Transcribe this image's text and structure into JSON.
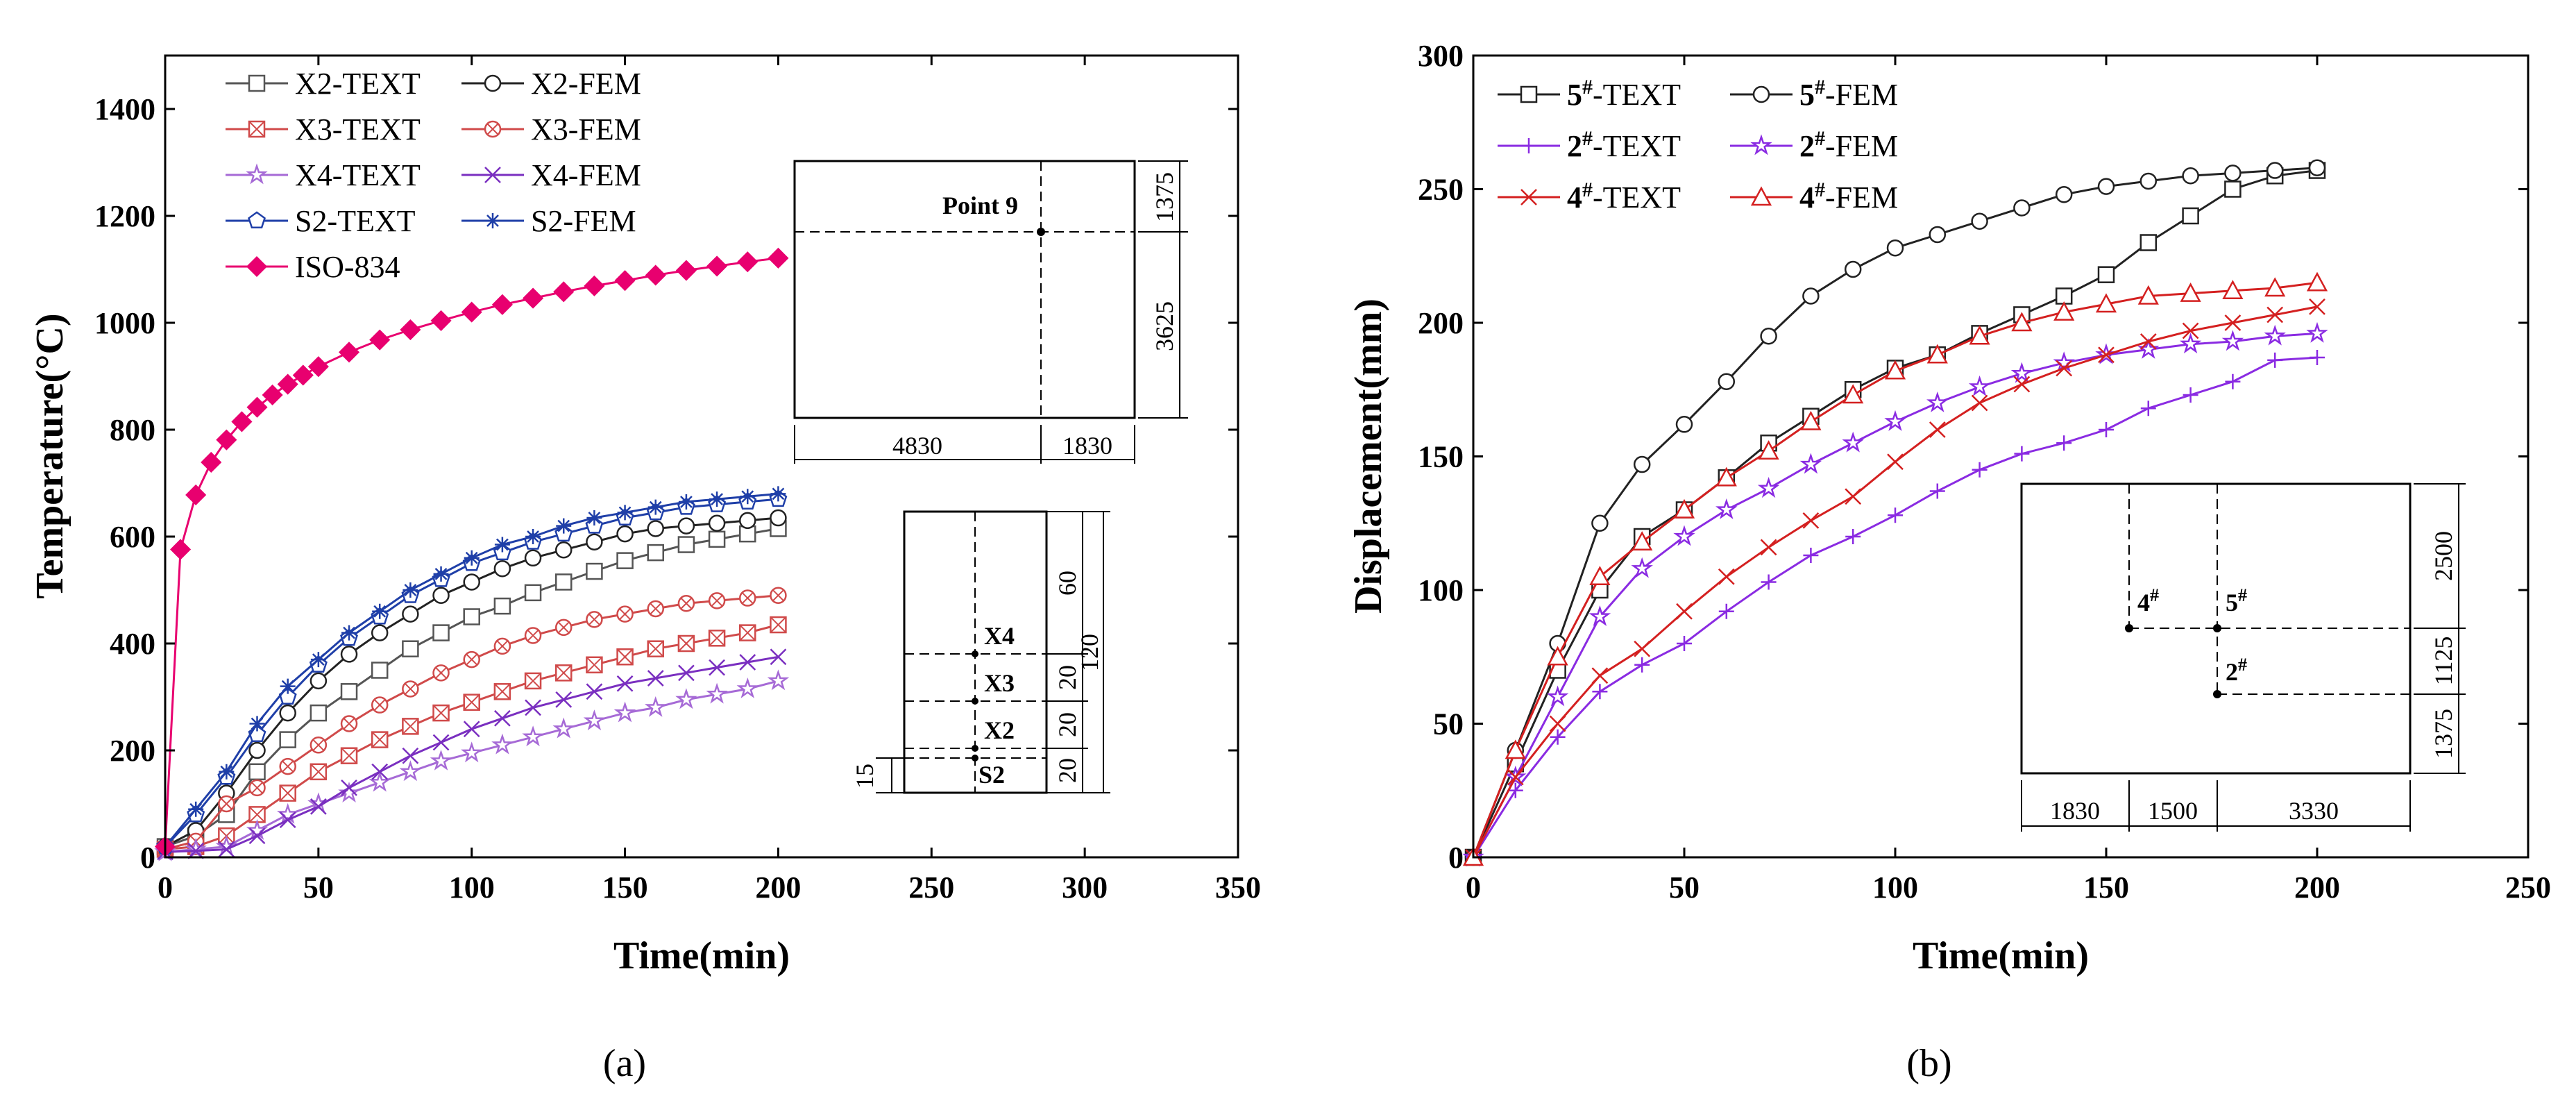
{
  "chart_data": [
    {
      "type": "line",
      "panel_label": "(a)",
      "title": "",
      "xlabel": "Time(min)",
      "ylabel": "Temperature(°C)",
      "xlim": [
        0,
        350
      ],
      "ylim": [
        0,
        1500
      ],
      "xticks": [
        0,
        50,
        100,
        150,
        200,
        250,
        300,
        350
      ],
      "yticks": [
        0,
        200,
        400,
        600,
        800,
        1000,
        1200,
        1400
      ],
      "legend_position": "top-left",
      "series": [
        {
          "name": "X2-TEXT",
          "color": "#555555",
          "marker": "square",
          "x": [
            0,
            10,
            20,
            30,
            40,
            50,
            60,
            70,
            80,
            90,
            100,
            110,
            120,
            130,
            140,
            150,
            160,
            170,
            180,
            190,
            200
          ],
          "y": [
            20,
            40,
            80,
            160,
            220,
            270,
            310,
            350,
            390,
            420,
            450,
            470,
            495,
            515,
            535,
            555,
            570,
            585,
            595,
            605,
            615
          ]
        },
        {
          "name": "X2-FEM",
          "color": "#222222",
          "marker": "circle",
          "x": [
            0,
            10,
            20,
            30,
            40,
            50,
            60,
            70,
            80,
            90,
            100,
            110,
            120,
            130,
            140,
            150,
            160,
            170,
            180,
            190,
            200
          ],
          "y": [
            20,
            50,
            120,
            200,
            270,
            330,
            380,
            420,
            455,
            490,
            515,
            540,
            560,
            575,
            590,
            605,
            615,
            620,
            625,
            630,
            635
          ]
        },
        {
          "name": "X3-TEXT",
          "color": "#d04a4a",
          "marker": "square-x",
          "x": [
            0,
            10,
            20,
            30,
            40,
            50,
            60,
            70,
            80,
            90,
            100,
            110,
            120,
            130,
            140,
            150,
            160,
            170,
            180,
            190,
            200
          ],
          "y": [
            15,
            20,
            40,
            80,
            120,
            160,
            190,
            220,
            245,
            270,
            290,
            310,
            330,
            345,
            360,
            375,
            390,
            400,
            410,
            420,
            435
          ]
        },
        {
          "name": "X3-FEM",
          "color": "#d04a4a",
          "marker": "circle-x",
          "x": [
            0,
            10,
            20,
            30,
            40,
            50,
            60,
            70,
            80,
            90,
            100,
            110,
            120,
            130,
            140,
            150,
            160,
            170,
            180,
            190,
            200
          ],
          "y": [
            15,
            30,
            100,
            130,
            170,
            210,
            250,
            285,
            315,
            345,
            370,
            395,
            415,
            430,
            445,
            455,
            465,
            475,
            480,
            485,
            490
          ]
        },
        {
          "name": "X4-TEXT",
          "color": "#a66ad6",
          "marker": "star",
          "x": [
            0,
            10,
            20,
            30,
            40,
            50,
            60,
            70,
            80,
            90,
            100,
            110,
            120,
            130,
            140,
            150,
            160,
            170,
            180,
            190,
            200
          ],
          "y": [
            10,
            15,
            20,
            50,
            80,
            100,
            120,
            140,
            160,
            180,
            195,
            210,
            225,
            240,
            255,
            270,
            280,
            295,
            305,
            315,
            330
          ]
        },
        {
          "name": "X4-FEM",
          "color": "#7a2fc0",
          "marker": "x",
          "x": [
            0,
            10,
            20,
            30,
            40,
            50,
            60,
            70,
            80,
            90,
            100,
            110,
            120,
            130,
            140,
            150,
            160,
            170,
            180,
            190,
            200
          ],
          "y": [
            10,
            12,
            15,
            40,
            70,
            95,
            130,
            160,
            190,
            215,
            240,
            260,
            280,
            295,
            310,
            325,
            335,
            345,
            355,
            365,
            375
          ]
        },
        {
          "name": "S2-TEXT",
          "color": "#1f3fa8",
          "marker": "pentagon",
          "x": [
            0,
            10,
            20,
            30,
            40,
            50,
            60,
            70,
            80,
            90,
            100,
            110,
            120,
            130,
            140,
            150,
            160,
            170,
            180,
            190,
            200
          ],
          "y": [
            20,
            80,
            150,
            230,
            300,
            360,
            410,
            450,
            490,
            520,
            550,
            570,
            590,
            605,
            620,
            635,
            645,
            655,
            660,
            665,
            670
          ]
        },
        {
          "name": "S2-FEM",
          "color": "#1f3fa8",
          "marker": "asterisk",
          "x": [
            0,
            10,
            20,
            30,
            40,
            50,
            60,
            70,
            80,
            90,
            100,
            110,
            120,
            130,
            140,
            150,
            160,
            170,
            180,
            190,
            200
          ],
          "y": [
            20,
            90,
            160,
            250,
            320,
            370,
            420,
            460,
            500,
            530,
            560,
            585,
            600,
            620,
            635,
            645,
            655,
            665,
            670,
            675,
            680
          ]
        },
        {
          "name": "ISO-834",
          "color": "#e8006f",
          "marker": "diamond-filled",
          "x": [
            0,
            5,
            10,
            15,
            20,
            25,
            30,
            35,
            40,
            45,
            50,
            60,
            70,
            80,
            90,
            100,
            110,
            120,
            130,
            140,
            150,
            160,
            170,
            180,
            190,
            200
          ],
          "y": [
            20,
            576,
            678,
            739,
            781,
            815,
            842,
            865,
            885,
            902,
            918,
            945,
            968,
            987,
            1004,
            1020,
            1034,
            1046,
            1058,
            1069,
            1079,
            1089,
            1098,
            1106,
            1114,
            1121
          ]
        }
      ],
      "inset_top": {
        "point_label": "Point 9",
        "dims_horizontal": [
          "4830",
          "1830"
        ],
        "dims_vertical": [
          "1375",
          "3625"
        ]
      },
      "inset_bottom": {
        "section_labels": [
          "X4",
          "X3",
          "X2",
          "S2"
        ],
        "dims_spacing": [
          "60",
          "20",
          "20",
          "20"
        ],
        "dim_total": "120",
        "dim_side": "15"
      }
    },
    {
      "type": "line",
      "panel_label": "(b)",
      "title": "",
      "xlabel": "Time(min)",
      "ylabel": "Displacement(mm)",
      "xlim": [
        0,
        250
      ],
      "ylim": [
        0,
        300
      ],
      "xticks": [
        0,
        50,
        100,
        150,
        200,
        250
      ],
      "yticks": [
        0,
        50,
        100,
        150,
        200,
        250,
        300
      ],
      "legend_position": "top-left",
      "series": [
        {
          "name": "5#-TEXT",
          "label_num": "5",
          "label_sup": "#",
          "label_suffix": "-TEXT",
          "color": "#222222",
          "marker": "square",
          "x": [
            0,
            10,
            20,
            30,
            40,
            50,
            60,
            70,
            80,
            90,
            100,
            110,
            120,
            130,
            140,
            150,
            160,
            170,
            180,
            190,
            200
          ],
          "y": [
            0,
            35,
            70,
            100,
            120,
            130,
            142,
            155,
            165,
            175,
            183,
            188,
            196,
            203,
            210,
            218,
            230,
            240,
            250,
            255,
            257
          ]
        },
        {
          "name": "5#-FEM",
          "label_num": "5",
          "label_sup": "#",
          "label_suffix": "-FEM",
          "color": "#222222",
          "marker": "circle",
          "x": [
            0,
            10,
            20,
            30,
            40,
            50,
            60,
            70,
            80,
            90,
            100,
            110,
            120,
            130,
            140,
            150,
            160,
            170,
            180,
            190,
            200
          ],
          "y": [
            0,
            40,
            80,
            125,
            147,
            162,
            178,
            195,
            210,
            220,
            228,
            233,
            238,
            243,
            248,
            251,
            253,
            255,
            256,
            257,
            258
          ]
        },
        {
          "name": "2#-TEXT",
          "label_num": "2",
          "label_sup": "#",
          "label_suffix": "-TEXT",
          "color": "#8a2be2",
          "marker": "plus",
          "x": [
            0,
            10,
            20,
            30,
            40,
            50,
            60,
            70,
            80,
            90,
            100,
            110,
            120,
            130,
            140,
            150,
            160,
            170,
            180,
            190,
            200
          ],
          "y": [
            0,
            25,
            45,
            62,
            72,
            80,
            92,
            103,
            113,
            120,
            128,
            137,
            145,
            151,
            155,
            160,
            168,
            173,
            178,
            186,
            187
          ]
        },
        {
          "name": "2#-FEM",
          "label_num": "2",
          "label_sup": "#",
          "label_suffix": "-FEM",
          "color": "#8a2be2",
          "marker": "star",
          "x": [
            0,
            10,
            20,
            30,
            40,
            50,
            60,
            70,
            80,
            90,
            100,
            110,
            120,
            130,
            140,
            150,
            160,
            170,
            180,
            190,
            200
          ],
          "y": [
            0,
            30,
            60,
            90,
            108,
            120,
            130,
            138,
            147,
            155,
            163,
            170,
            176,
            181,
            185,
            188,
            190,
            192,
            193,
            195,
            196
          ]
        },
        {
          "name": "4#-TEXT",
          "label_num": "4",
          "label_sup": "#",
          "label_suffix": "-TEXT",
          "color": "#d42020",
          "marker": "x",
          "x": [
            0,
            10,
            20,
            30,
            40,
            50,
            60,
            70,
            80,
            90,
            100,
            110,
            120,
            130,
            140,
            150,
            160,
            170,
            180,
            190,
            200
          ],
          "y": [
            0,
            30,
            50,
            68,
            78,
            92,
            105,
            116,
            126,
            135,
            148,
            160,
            170,
            177,
            183,
            188,
            193,
            197,
            200,
            203,
            206
          ]
        },
        {
          "name": "4#-FEM",
          "label_num": "4",
          "label_sup": "#",
          "label_suffix": "-FEM",
          "color": "#d42020",
          "marker": "triangle",
          "x": [
            0,
            10,
            20,
            30,
            40,
            50,
            60,
            70,
            80,
            90,
            100,
            110,
            120,
            130,
            140,
            150,
            160,
            170,
            180,
            190,
            200
          ],
          "y": [
            0,
            40,
            75,
            105,
            118,
            130,
            142,
            152,
            163,
            173,
            182,
            188,
            195,
            200,
            204,
            207,
            210,
            211,
            212,
            213,
            215
          ]
        }
      ],
      "inset": {
        "point_labels": [
          {
            "num": "4",
            "sup": "#"
          },
          {
            "num": "5",
            "sup": "#"
          },
          {
            "num": "2",
            "sup": "#"
          }
        ],
        "dims_horizontal": [
          "1830",
          "1500",
          "3330"
        ],
        "dims_vertical": [
          "2500",
          "1125",
          "1375"
        ]
      }
    }
  ]
}
